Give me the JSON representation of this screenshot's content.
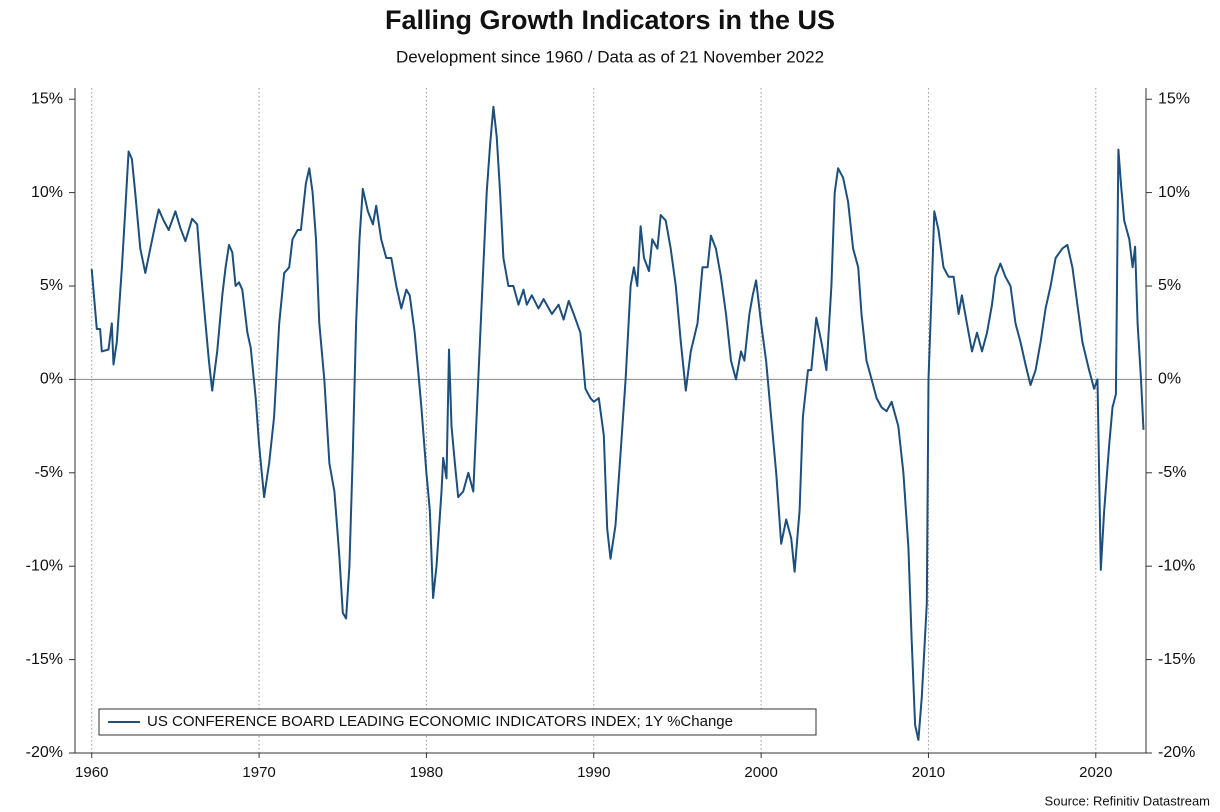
{
  "chart_data": {
    "type": "line",
    "title": "Falling Growth Indicators in the US",
    "subtitle": "Development since 1960 / Data as of 21 November 2022",
    "source": "Source: Refinitiv Datastream",
    "xlim": [
      1959,
      2023
    ],
    "xticks": [
      1960,
      1970,
      1980,
      1990,
      2000,
      2010,
      2020
    ],
    "ylim": [
      -20,
      15.6
    ],
    "yticks": [
      {
        "value": -20,
        "label": "-20%"
      },
      {
        "value": -15,
        "label": "-15%"
      },
      {
        "value": -10,
        "label": "-10%"
      },
      {
        "value": -5,
        "label": "-5%"
      },
      {
        "value": 0,
        "label": "0%"
      },
      {
        "value": 5,
        "label": "5%"
      },
      {
        "value": 10,
        "label": "10%"
      },
      {
        "value": 15,
        "label": "15%"
      }
    ],
    "grid": true,
    "legend": "lower left",
    "x": [
      1960.0,
      1960.3,
      1960.5,
      1960.6,
      1961.0,
      1961.2,
      1961.3,
      1961.5,
      1961.8,
      1962.0,
      1962.2,
      1962.4,
      1962.6,
      1962.9,
      1963.2,
      1963.5,
      1963.8,
      1964.0,
      1964.3,
      1964.6,
      1965.0,
      1965.3,
      1965.6,
      1966.0,
      1966.3,
      1966.5,
      1966.8,
      1967.0,
      1967.2,
      1967.5,
      1967.8,
      1968.0,
      1968.2,
      1968.4,
      1968.6,
      1968.8,
      1969.0,
      1969.3,
      1969.5,
      1969.8,
      1970.0,
      1970.3,
      1970.6,
      1970.9,
      1971.2,
      1971.5,
      1971.8,
      1972.0,
      1972.3,
      1972.5,
      1972.8,
      1973.0,
      1973.2,
      1973.4,
      1973.6,
      1973.9,
      1974.2,
      1974.5,
      1974.8,
      1975.0,
      1975.2,
      1975.4,
      1975.6,
      1975.8,
      1976.0,
      1976.2,
      1976.5,
      1976.8,
      1977.0,
      1977.3,
      1977.6,
      1977.9,
      1978.2,
      1978.5,
      1978.8,
      1979.0,
      1979.3,
      1979.5,
      1979.7,
      1980.0,
      1980.2,
      1980.4,
      1980.6,
      1980.9,
      1981.0,
      1981.2,
      1981.35,
      1981.5,
      1981.7,
      1981.9,
      1982.2,
      1982.5,
      1982.8,
      1983.0,
      1983.3,
      1983.6,
      1983.8,
      1984.0,
      1984.2,
      1984.4,
      1984.6,
      1984.9,
      1985.2,
      1985.5,
      1985.8,
      1986.0,
      1986.3,
      1986.7,
      1987.0,
      1987.5,
      1987.9,
      1988.2,
      1988.5,
      1988.8,
      1989.2,
      1989.5,
      1989.8,
      1990.0,
      1990.3,
      1990.6,
      1990.8,
      1991.0,
      1991.3,
      1991.6,
      1991.9,
      1992.2,
      1992.4,
      1992.6,
      1992.8,
      1993.0,
      1993.3,
      1993.5,
      1993.8,
      1994.0,
      1994.3,
      1994.6,
      1994.9,
      1995.2,
      1995.5,
      1995.8,
      1996.2,
      1996.5,
      1996.8,
      1997.0,
      1997.3,
      1997.6,
      1997.9,
      1998.2,
      1998.5,
      1998.8,
      1999.0,
      1999.3,
      1999.5,
      1999.7,
      2000.0,
      2000.3,
      2000.6,
      2000.9,
      2001.2,
      2001.5,
      2001.8,
      2002.0,
      2002.3,
      2002.5,
      2002.8,
      2003.0,
      2003.3,
      2003.6,
      2003.9,
      2004.2,
      2004.4,
      2004.6,
      2004.9,
      2005.2,
      2005.5,
      2005.8,
      2006.0,
      2006.3,
      2006.6,
      2006.9,
      2007.2,
      2007.5,
      2007.8,
      2008.2,
      2008.5,
      2008.8,
      2009.0,
      2009.2,
      2009.4,
      2009.6,
      2009.9,
      2010.0,
      2010.2,
      2010.35,
      2010.6,
      2010.9,
      2011.2,
      2011.5,
      2011.8,
      2012.0,
      2012.3,
      2012.6,
      2012.9,
      2013.2,
      2013.5,
      2013.8,
      2014.0,
      2014.3,
      2014.6,
      2014.9,
      2015.2,
      2015.5,
      2015.8,
      2016.1,
      2016.4,
      2016.7,
      2017.0,
      2017.3,
      2017.6,
      2018.0,
      2018.3,
      2018.6,
      2018.9,
      2019.2,
      2019.6,
      2019.9,
      2020.1,
      2020.3,
      2020.5,
      2020.8,
      2021.0,
      2021.2,
      2021.35,
      2021.5,
      2021.7,
      2022.0,
      2022.2,
      2022.35,
      2022.5,
      2022.7,
      2022.85
    ],
    "series": [
      {
        "name": "US CONFERENCE BOARD LEADING ECONOMIC INDICATORS INDEX; 1Y %Change",
        "color": "#1d4f7c",
        "values": [
          5.9,
          2.7,
          2.7,
          1.5,
          1.6,
          3.0,
          0.8,
          2.0,
          6.0,
          9.0,
          12.2,
          11.8,
          10.0,
          7.0,
          5.7,
          7.0,
          8.3,
          9.1,
          8.5,
          8.0,
          9.0,
          8.1,
          7.4,
          8.6,
          8.3,
          6.0,
          3.0,
          1.0,
          -0.6,
          1.5,
          4.5,
          6.0,
          7.2,
          6.8,
          5.0,
          5.2,
          4.8,
          2.5,
          1.7,
          -1.0,
          -3.5,
          -6.3,
          -4.5,
          -2.0,
          3.0,
          5.7,
          6.0,
          7.5,
          8.0,
          8.0,
          10.5,
          11.3,
          10.0,
          7.5,
          3.0,
          0.0,
          -4.5,
          -6.0,
          -9.5,
          -12.5,
          -12.8,
          -10.0,
          -4.0,
          3.0,
          7.5,
          10.2,
          9.0,
          8.3,
          9.3,
          7.5,
          6.5,
          6.5,
          5.0,
          3.8,
          4.8,
          4.5,
          2.5,
          0.5,
          -1.5,
          -5.0,
          -7.0,
          -11.7,
          -10.0,
          -6.0,
          -4.2,
          -5.3,
          1.6,
          -2.5,
          -4.5,
          -6.3,
          -6.0,
          -5.0,
          -6.0,
          -2.0,
          4.0,
          10.0,
          12.5,
          14.6,
          13.0,
          10.0,
          6.5,
          5.0,
          5.0,
          4.0,
          4.8,
          4.0,
          4.5,
          3.8,
          4.3,
          3.5,
          4.0,
          3.2,
          4.2,
          3.5,
          2.5,
          -0.5,
          -1.0,
          -1.2,
          -1.0,
          -3.0,
          -8.0,
          -9.6,
          -7.8,
          -4.0,
          0.0,
          5.0,
          6.0,
          5.0,
          8.2,
          6.5,
          5.8,
          7.5,
          7.0,
          8.8,
          8.5,
          7.0,
          5.0,
          2.0,
          -0.6,
          1.5,
          3.0,
          6.0,
          6.0,
          7.7,
          7.0,
          5.5,
          3.5,
          1.0,
          0.0,
          1.5,
          1.0,
          3.5,
          4.5,
          5.3,
          3.0,
          1.0,
          -2.0,
          -5.0,
          -8.8,
          -7.5,
          -8.5,
          -10.3,
          -7.0,
          -2.0,
          0.5,
          0.5,
          3.3,
          2.0,
          0.5,
          5.0,
          10.0,
          11.3,
          10.8,
          9.5,
          7.0,
          6.0,
          3.5,
          1.0,
          0.0,
          -1.0,
          -1.5,
          -1.7,
          -1.2,
          -2.5,
          -5.0,
          -9.0,
          -14.0,
          -18.5,
          -19.3,
          -17.0,
          -12.0,
          0.0,
          5.0,
          9.0,
          8.0,
          6.0,
          5.5,
          5.5,
          3.5,
          4.5,
          3.0,
          1.5,
          2.5,
          1.5,
          2.5,
          4.0,
          5.5,
          6.2,
          5.5,
          5.0,
          3.0,
          2.0,
          0.8,
          -0.3,
          0.5,
          2.0,
          3.8,
          5.0,
          6.5,
          7.0,
          7.2,
          6.0,
          4.0,
          2.0,
          0.5,
          -0.5,
          0.0,
          -10.2,
          -7.0,
          -3.5,
          -1.5,
          -0.8,
          12.3,
          10.5,
          8.5,
          7.5,
          6.0,
          7.1,
          3.0,
          0.0,
          -2.7
        ]
      }
    ]
  }
}
